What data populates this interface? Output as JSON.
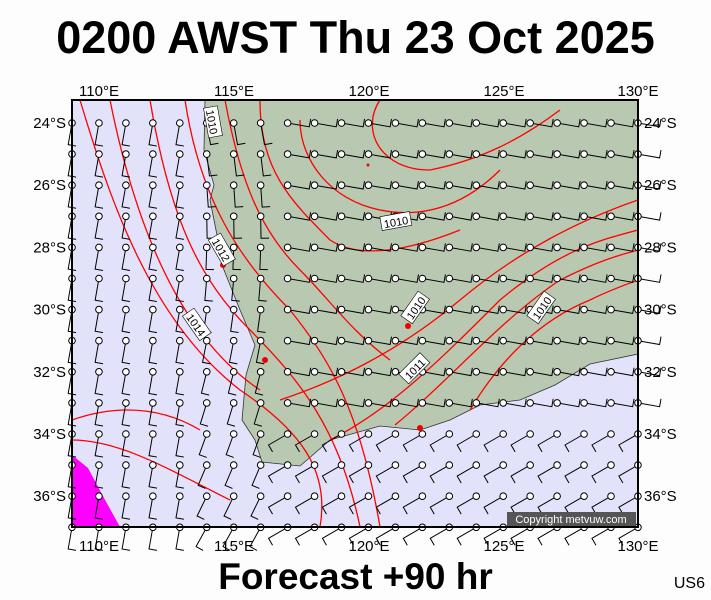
{
  "title": "0200 AWST Thu 23 Oct 2025",
  "footer": "Forecast +90 hr",
  "region_code": "US6",
  "copyright": "Copyright metvuw.com",
  "lon_ticks": [
    "110°E",
    "115°E",
    "120°E",
    "125°E",
    "130°E"
  ],
  "lat_ticks": [
    "24°S",
    "26°S",
    "28°S",
    "30°S",
    "32°S",
    "34°S",
    "36°S"
  ],
  "isobar_labels": [
    "1010",
    "1012",
    "1014",
    "1010",
    "1010",
    "1011"
  ],
  "colors": {
    "ocean": "#e2e2fa",
    "land": "#b9c9b1",
    "isobar": "#ff0000",
    "precip": "#ff00ff"
  }
}
